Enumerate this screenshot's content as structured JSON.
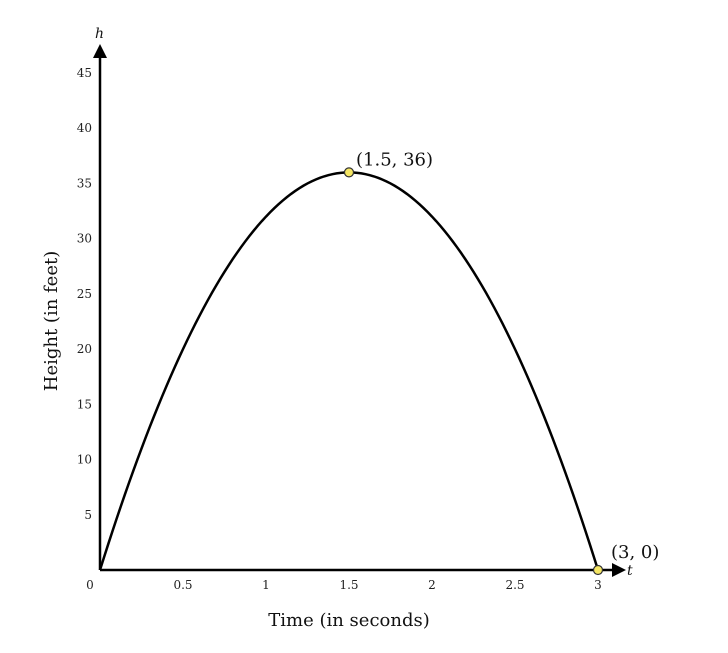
{
  "chart_data": {
    "type": "line",
    "xlabel": "Time (in seconds)",
    "ylabel": "Height (in feet)",
    "x_axis_var": "t",
    "y_axis_var": "h",
    "xlim": [
      0,
      3
    ],
    "ylim": [
      0,
      45
    ],
    "x_ticks": [
      {
        "value": 0,
        "label": "0"
      },
      {
        "value": 0.5,
        "label": "0.5"
      },
      {
        "value": 1,
        "label": "1"
      },
      {
        "value": 1.5,
        "label": "1.5"
      },
      {
        "value": 2,
        "label": "2"
      },
      {
        "value": 2.5,
        "label": "2.5"
      },
      {
        "value": 3,
        "label": "3"
      }
    ],
    "y_ticks": [
      {
        "value": 5,
        "label": "5"
      },
      {
        "value": 10,
        "label": "10"
      },
      {
        "value": 15,
        "label": "15"
      },
      {
        "value": 20,
        "label": "20"
      },
      {
        "value": 25,
        "label": "25"
      },
      {
        "value": 30,
        "label": "30"
      },
      {
        "value": 35,
        "label": "35"
      },
      {
        "value": 40,
        "label": "40"
      },
      {
        "value": 45,
        "label": "45"
      }
    ],
    "grid": false,
    "series": [
      {
        "curve": "h = -16t^2 + 48t",
        "x": [
          0,
          0.25,
          0.5,
          0.75,
          1,
          1.25,
          1.5,
          1.75,
          2,
          2.25,
          2.5,
          2.75,
          3
        ],
        "y": [
          0,
          11,
          20,
          27,
          32,
          35,
          36,
          35,
          32,
          27,
          20,
          11,
          0
        ],
        "color": "#000000"
      }
    ],
    "points": [
      {
        "x": 1.5,
        "y": 36,
        "label": "(1.5, 36)",
        "color": "#f5e663"
      },
      {
        "x": 3,
        "y": 0,
        "label": "(3, 0)",
        "color": "#f5e663"
      }
    ]
  }
}
